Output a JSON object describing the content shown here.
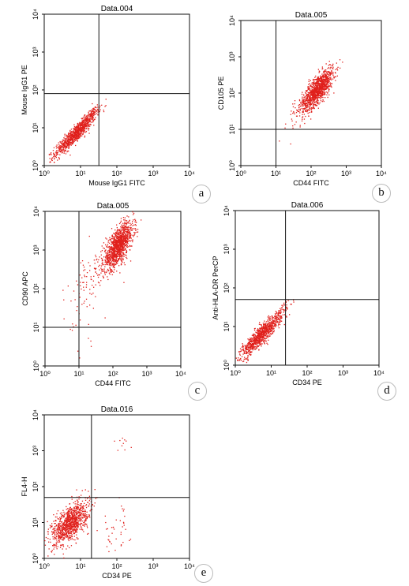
{
  "chart_data": [
    {
      "type": "scatter",
      "panel_letter": "a",
      "title": "Data.004",
      "xlabel": "Mouse IgG1 FITC",
      "ylabel": "Mouse IgG1 PE",
      "xscale": "log",
      "yscale": "log",
      "xlim": [
        1,
        10000
      ],
      "ylim": [
        1,
        10000
      ],
      "x_ticks": [
        "10⁰",
        "10¹",
        "10²",
        "10³",
        "10⁴"
      ],
      "y_ticks": [
        "10⁰",
        "10¹",
        "10²",
        "10³",
        "10⁴"
      ],
      "quadrant": {
        "x": 32,
        "y": 80
      },
      "color": "#e0201c",
      "populations": [
        {
          "cx": 7,
          "cy": 7,
          "sx": 0.28,
          "sy": 0.28,
          "rho": 0.92,
          "n": 900
        },
        {
          "cx": 20,
          "cy": 25,
          "sx": 0.12,
          "sy": 0.12,
          "rho": 0.85,
          "n": 60
        }
      ]
    },
    {
      "type": "scatter",
      "panel_letter": "b",
      "title": "Data.005",
      "xlabel": "CD44 FITC",
      "ylabel": "CD105 PE",
      "xscale": "log",
      "yscale": "log",
      "xlim": [
        1,
        10000
      ],
      "ylim": [
        1,
        10000
      ],
      "x_ticks": [
        "10⁰",
        "10¹",
        "10²",
        "10³",
        "10⁴"
      ],
      "y_ticks": [
        "10⁰",
        "10¹",
        "10²",
        "10³",
        "10⁴"
      ],
      "quadrant": {
        "x": 10,
        "y": 10
      },
      "color": "#e0201c",
      "populations": [
        {
          "cx": 150,
          "cy": 130,
          "sx": 0.22,
          "sy": 0.28,
          "rho": 0.75,
          "n": 1100
        },
        {
          "cx": 40,
          "cy": 25,
          "sx": 0.3,
          "sy": 0.3,
          "rho": 0.5,
          "n": 50
        }
      ]
    },
    {
      "type": "scatter",
      "panel_letter": "c",
      "title": "Data.005",
      "xlabel": "CD44 FITC",
      "ylabel": "CD90 APC",
      "xscale": "log",
      "yscale": "log",
      "xlim": [
        1,
        10000
      ],
      "ylim": [
        1,
        10000
      ],
      "x_ticks": [
        "10⁰",
        "10¹",
        "10²",
        "10³",
        "10⁴"
      ],
      "y_ticks": [
        "10⁰",
        "10¹",
        "10²",
        "10³",
        "10⁴"
      ],
      "quadrant": {
        "x": 10,
        "y": 10
      },
      "color": "#e0201c",
      "populations": [
        {
          "cx": 140,
          "cy": 1300,
          "sx": 0.22,
          "sy": 0.3,
          "rho": 0.7,
          "n": 1200
        },
        {
          "cx": 25,
          "cy": 250,
          "sx": 0.35,
          "sy": 0.45,
          "rho": 0.5,
          "n": 80
        },
        {
          "cx": 10,
          "cy": 20,
          "sx": 0.25,
          "sy": 0.45,
          "rho": 0.2,
          "n": 25
        }
      ]
    },
    {
      "type": "scatter",
      "panel_letter": "d",
      "title": "Data.006",
      "xlabel": "CD34 PE",
      "ylabel": "Anti-HLA-DR PerCP",
      "xscale": "log",
      "yscale": "log",
      "xlim": [
        1,
        10000
      ],
      "ylim": [
        1,
        10000
      ],
      "x_ticks": [
        "10⁰",
        "10¹",
        "10²",
        "10³",
        "10⁴"
      ],
      "y_ticks": [
        "10⁰",
        "10¹",
        "10²",
        "10³",
        "10⁴"
      ],
      "quadrant": {
        "x": 25,
        "y": 50
      },
      "color": "#e0201c",
      "populations": [
        {
          "cx": 5,
          "cy": 6,
          "sx": 0.28,
          "sy": 0.28,
          "rho": 0.9,
          "n": 900
        },
        {
          "cx": 18,
          "cy": 25,
          "sx": 0.15,
          "sy": 0.15,
          "rho": 0.8,
          "n": 60
        }
      ]
    },
    {
      "type": "scatter",
      "panel_letter": "e",
      "title": "Data.016",
      "xlabel": "CD34 PE",
      "ylabel": "FL4-H",
      "xscale": "log",
      "yscale": "log",
      "xlim": [
        1,
        10000
      ],
      "ylim": [
        1,
        10000
      ],
      "x_ticks": [
        "10⁰",
        "10¹",
        "10²",
        "10³",
        "10⁴"
      ],
      "y_ticks": [
        "10⁰",
        "10¹",
        "10²",
        "10³",
        "10⁴"
      ],
      "quadrant": {
        "x": 20,
        "y": 50
      },
      "color": "#e0201c",
      "populations": [
        {
          "cx": 5,
          "cy": 10,
          "sx": 0.25,
          "sy": 0.3,
          "rho": 0.6,
          "n": 1000
        },
        {
          "cx": 80,
          "cy": 8,
          "sx": 0.2,
          "sy": 0.35,
          "rho": 0.1,
          "n": 40
        },
        {
          "cx": 150,
          "cy": 1500,
          "sx": 0.12,
          "sy": 0.15,
          "rho": 0.0,
          "n": 10
        }
      ]
    }
  ]
}
